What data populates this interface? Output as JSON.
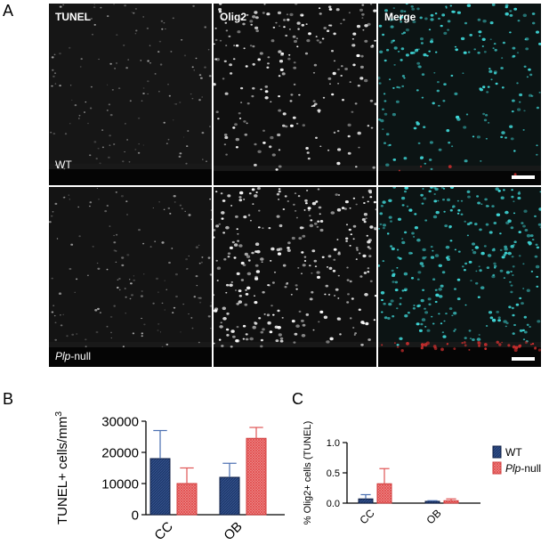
{
  "panels": {
    "A": "A",
    "B": "B",
    "C": "C"
  },
  "micrograph": {
    "columns": [
      "TUNEL",
      "Olig2",
      "Merge"
    ],
    "rows": [
      {
        "label": "WT",
        "italic_part": "",
        "rest": "WT"
      },
      {
        "label": "Plp-null",
        "italic_part": "Plp",
        "rest": "-null"
      }
    ],
    "colors": {
      "tunel": "#ffffff",
      "olig2": "#ffffff",
      "merge_olig2": "#3fd8d8",
      "merge_tunel": "#e03030"
    }
  },
  "chart_data": [
    {
      "type": "bar",
      "panel": "B",
      "ylabel": "TUNEL+ cells/mm",
      "ylabel_sup": "3",
      "categories": [
        "CC",
        "OB"
      ],
      "ylim": [
        0,
        30000
      ],
      "yticks": [
        "0",
        "10000",
        "20000",
        "30000"
      ],
      "series": [
        {
          "name": "WT",
          "values": [
            18000,
            12000
          ],
          "errors": [
            9000,
            4500
          ],
          "color": "#1f3a6e"
        },
        {
          "name": "Plp-null",
          "values": [
            10000,
            24500
          ],
          "errors": [
            5000,
            3500
          ],
          "color": "#e04848"
        }
      ]
    },
    {
      "type": "bar",
      "panel": "C",
      "ylabel": "% Olig2+ cells (TUNEL)",
      "categories": [
        "CC",
        "OB"
      ],
      "ylim": [
        0,
        1.0
      ],
      "yticks": [
        "0.0",
        "0.5",
        "1.0"
      ],
      "series": [
        {
          "name": "WT",
          "values": [
            0.07,
            0.03
          ],
          "errors": [
            0.07,
            0.01
          ],
          "color": "#1f3a6e"
        },
        {
          "name": "Plp-null",
          "values": [
            0.32,
            0.04
          ],
          "errors": [
            0.25,
            0.03
          ],
          "color": "#e04848"
        }
      ]
    }
  ],
  "legend": {
    "wt": "WT",
    "plp_italic": "Plp",
    "plp_rest": "-null"
  }
}
